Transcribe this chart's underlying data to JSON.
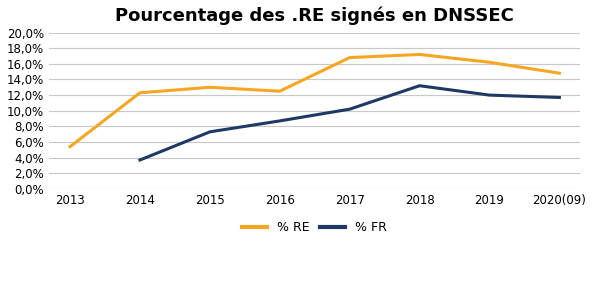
{
  "title": "Pourcentage des .RE signés en DNSSEC",
  "years": [
    "2013",
    "2014",
    "2015",
    "2016",
    "2017",
    "2018",
    "2019",
    "2020(09)"
  ],
  "re_values": [
    0.054,
    0.123,
    0.13,
    0.125,
    0.168,
    0.172,
    0.162,
    0.148
  ],
  "fr_values": [
    null,
    0.037,
    0.073,
    0.087,
    0.102,
    0.132,
    0.12,
    0.117
  ],
  "re_color": "#F5A623",
  "fr_color": "#1F3864",
  "background_color": "#FFFFFF",
  "grid_color": "#C8C8C8",
  "ylim": [
    0.0,
    0.2
  ],
  "ytick_step": 0.02,
  "legend_re": "% RE",
  "legend_fr": "% FR",
  "title_fontsize": 13,
  "tick_fontsize": 8.5,
  "legend_fontsize": 9,
  "line_width": 2.2
}
